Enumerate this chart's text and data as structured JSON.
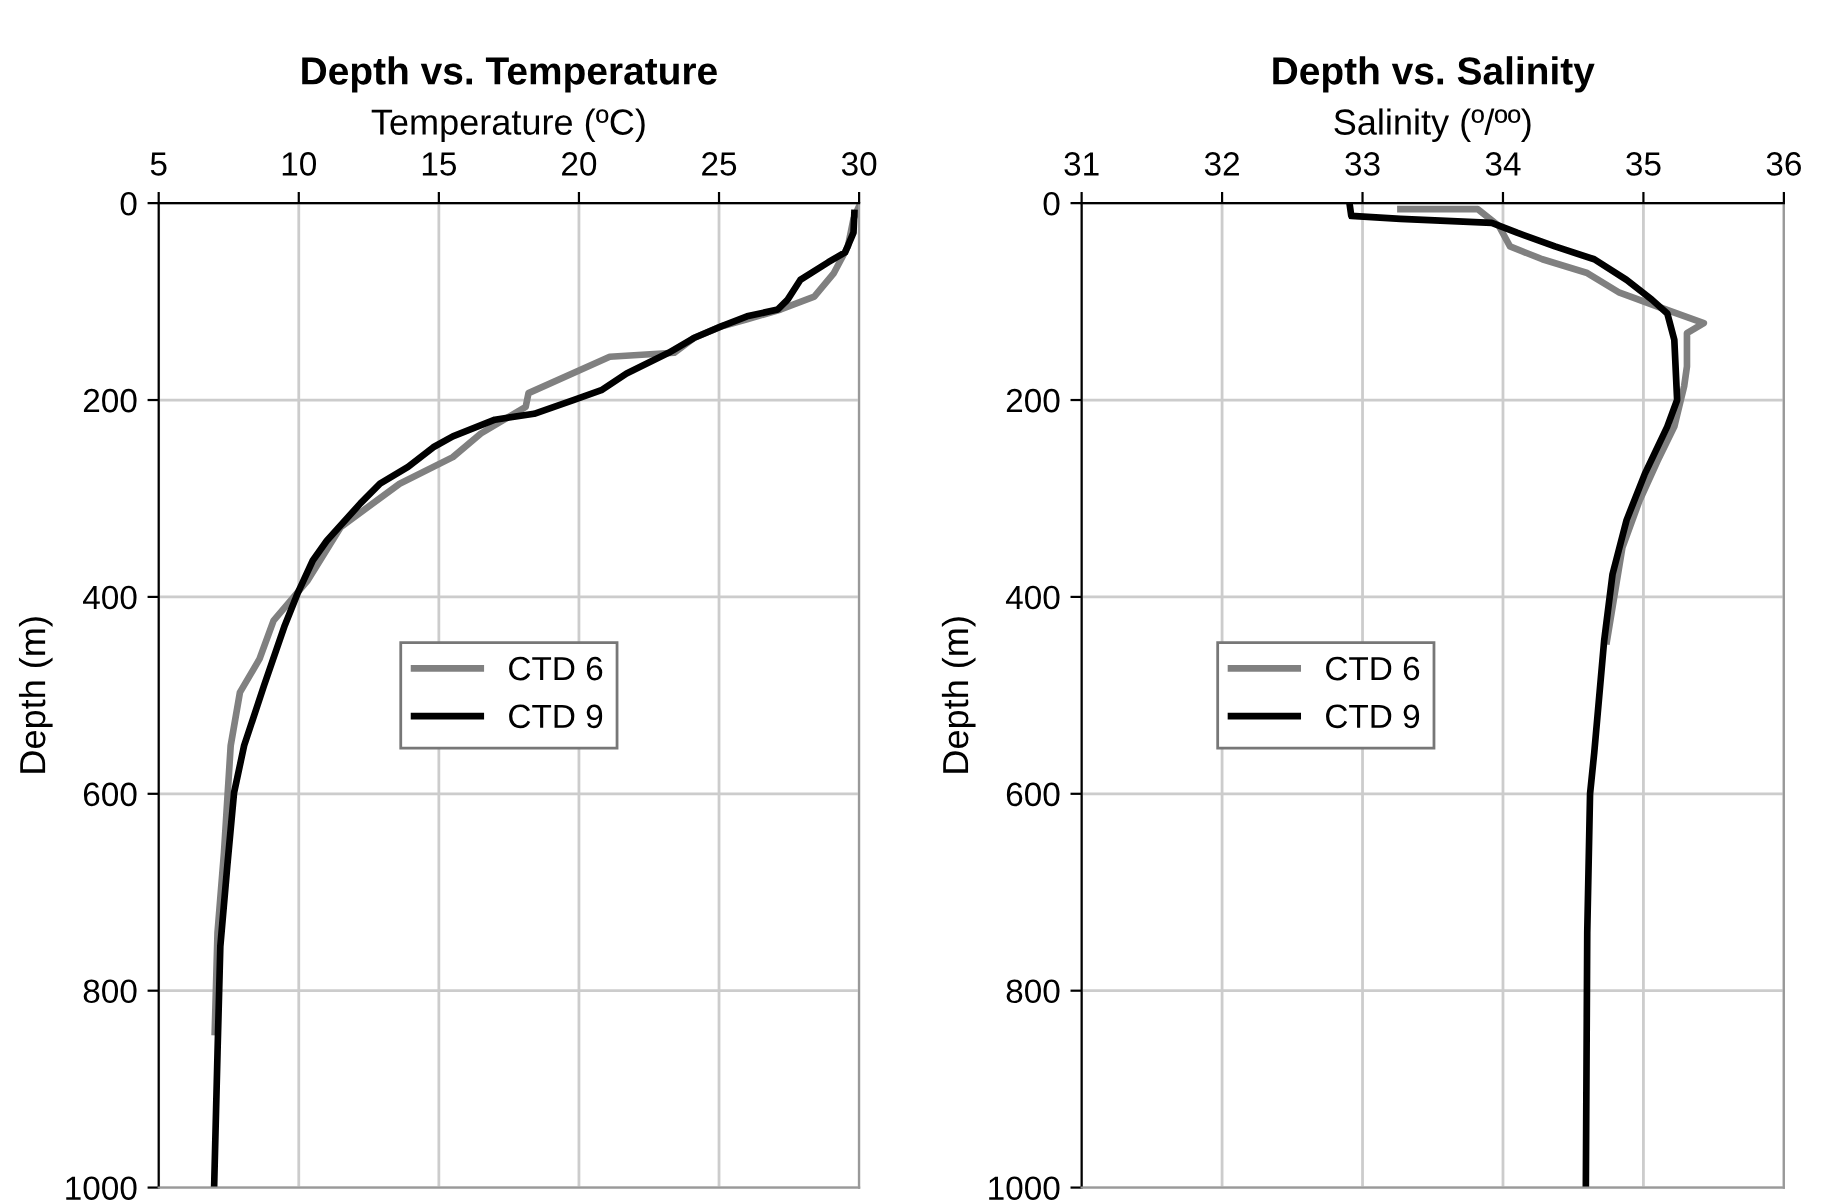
{
  "chart_data": [
    {
      "type": "line",
      "title": "Depth vs. Temperature",
      "xlabel": "Temperature (ºC)",
      "ylabel": "Depth (m)",
      "xlim": [
        5,
        30
      ],
      "xticks": [
        5,
        10,
        15,
        20,
        25,
        30
      ],
      "ylim": [
        1000,
        0
      ],
      "yticks": [
        0,
        200,
        400,
        600,
        800,
        1000
      ],
      "grid": true,
      "legend": "center",
      "line_style": "solid",
      "marker": "none",
      "series": [
        {
          "name": "CTD 6",
          "color": "#808080",
          "x": [
            30.0,
            29.8,
            29.6,
            29.1,
            28.4,
            27.2,
            26.0,
            25.1,
            24.1,
            23.4,
            21.1,
            18.2,
            18.1,
            16.5,
            15.5,
            13.6,
            11.5,
            10.3,
            9.1,
            8.6,
            7.9,
            7.57,
            7.33,
            7.1,
            7.0
          ],
          "values": [
            3,
            16,
            44,
            71,
            95,
            108,
            118,
            125,
            137,
            152,
            156,
            193,
            207,
            234,
            258,
            285,
            329,
            384,
            424,
            463,
            497,
            551,
            660,
            741,
            842
          ]
        },
        {
          "name": "CTD 9",
          "color": "#000000",
          "x": [
            29.83,
            29.8,
            29.5,
            28.9,
            27.9,
            27.45,
            27.1,
            26.0,
            25.1,
            24.1,
            23.2,
            21.7,
            20.8,
            19.8,
            18.4,
            17.0,
            15.5,
            14.8,
            13.9,
            12.9,
            12.2,
            11.0,
            10.5,
            9.95,
            9.5,
            8.76,
            8.05,
            7.69,
            7.45,
            7.2,
            7.1,
            6.98
          ],
          "values": [
            10,
            30,
            50,
            60,
            78,
            98,
            108,
            115,
            125,
            137,
            152,
            173,
            190,
            200,
            214,
            220,
            237,
            248,
            268,
            285,
            305,
            343,
            363,
            397,
            429,
            490,
            551,
            599,
            673,
            755,
            863,
            998
          ]
        }
      ]
    },
    {
      "type": "line",
      "title": "Depth vs. Salinity",
      "xlabel": "Salinity (º/ºº)",
      "ylabel": "Depth (m)",
      "xlim": [
        31,
        36
      ],
      "xticks": [
        31,
        32,
        33,
        34,
        35,
        36
      ],
      "ylim": [
        1000,
        0
      ],
      "yticks": [
        0,
        200,
        400,
        600,
        800,
        1000
      ],
      "grid": true,
      "legend": "center left",
      "line_style": "solid",
      "marker": "none",
      "series": [
        {
          "name": "CTD 6",
          "color": "#808080",
          "x": [
            33.27,
            33.82,
            33.97,
            34.05,
            34.28,
            34.6,
            34.83,
            35.1,
            35.43,
            35.31,
            35.31,
            35.29,
            35.22,
            35.1,
            34.97,
            34.85,
            34.74
          ],
          "values": [
            6,
            6,
            23,
            44,
            57,
            71,
            91,
            105,
            122,
            132,
            166,
            186,
            227,
            262,
            303,
            350,
            445
          ]
        },
        {
          "name": "CTD 9",
          "color": "#000000",
          "x": [
            32.91,
            32.92,
            33.27,
            33.92,
            34.1,
            34.37,
            34.65,
            34.88,
            35.06,
            35.17,
            35.22,
            35.24,
            35.17,
            35.01,
            34.88,
            34.78,
            34.72,
            34.65,
            34.62,
            34.6,
            34.59
          ],
          "values": [
            3,
            13,
            16,
            20,
            30,
            44,
            57,
            78,
            98,
            112,
            139,
            200,
            227,
            275,
            322,
            377,
            445,
            558,
            600,
            741,
            1000
          ]
        }
      ]
    }
  ]
}
